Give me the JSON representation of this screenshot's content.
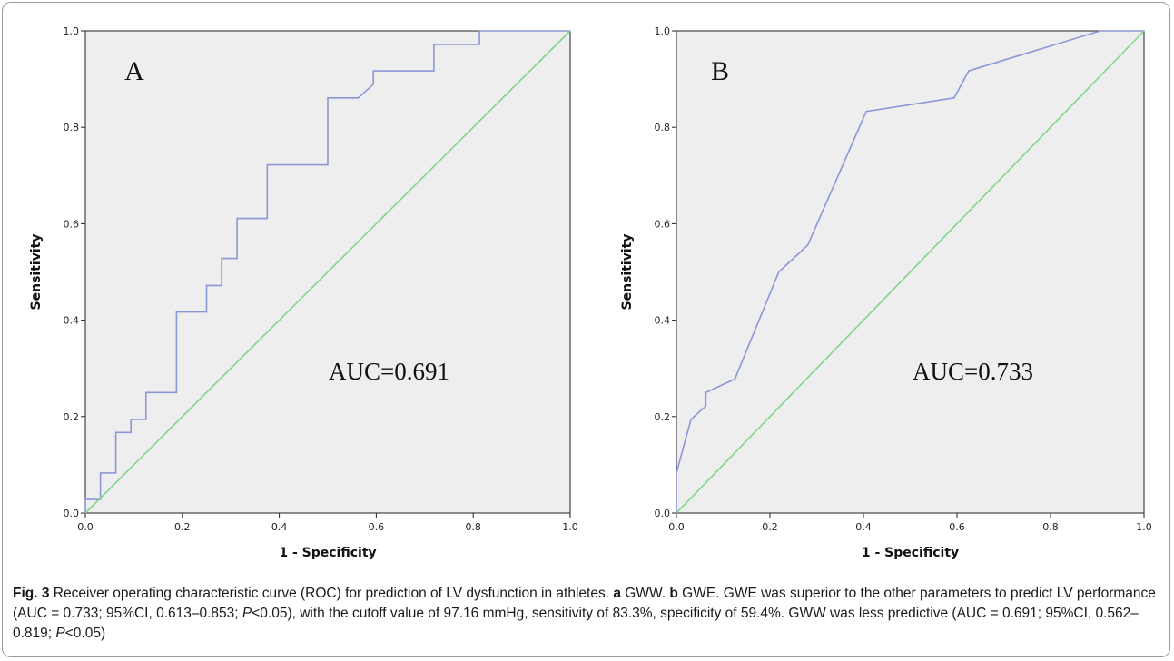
{
  "colors": {
    "roc_line": "#8c97d6",
    "reference_line": "#7fd68a",
    "plot_background": "#eeeeee"
  },
  "caption": {
    "fig_label": "Fig. 3",
    "text_1": " Receiver operating characteristic curve (ROC) for prediction of LV dysfunction in athletes. ",
    "a_label": "a",
    "text_2": " GWW. ",
    "b_label": "b",
    "text_3": " GWE. GWE was superior to the other parameters to predict LV performance (AUC = 0.733; 95%CI, 0.613–0.853; ",
    "p_label_1": "P",
    "text_4": "<0.05), with the cutoff value of 97.16 mmHg, sensitivity of 83.3%, specificity of 59.4%. GWW was less predictive (AUC = 0.691; 95%CI, 0.562–0.819; ",
    "p_label_2": "P",
    "text_5": "<0.05)"
  },
  "chart_data": [
    {
      "type": "line",
      "panel_label": "A",
      "annotation": "AUC=0.691",
      "xlabel": "1 - Specificity",
      "ylabel": "Sensitivity",
      "xlim": [
        0,
        1
      ],
      "ylim": [
        0,
        1
      ],
      "xticks": [
        "0.0",
        "0.2",
        "0.4",
        "0.6",
        "0.8",
        "1.0"
      ],
      "yticks": [
        "0.0",
        "0.2",
        "0.4",
        "0.6",
        "0.8",
        "1.0"
      ],
      "grid": false,
      "series": [
        {
          "role": "roc",
          "x": [
            0,
            0,
            0.031,
            0.031,
            0.063,
            0.063,
            0.094,
            0.094,
            0.125,
            0.125,
            0.188,
            0.188,
            0.25,
            0.25,
            0.281,
            0.281,
            0.313,
            0.313,
            0.375,
            0.375,
            0.5,
            0.5,
            0.563,
            0.594,
            0.594,
            0.719,
            0.719,
            0.813,
            0.813,
            1.0
          ],
          "y": [
            0,
            0.028,
            0.028,
            0.083,
            0.083,
            0.167,
            0.167,
            0.194,
            0.194,
            0.25,
            0.25,
            0.417,
            0.417,
            0.472,
            0.472,
            0.528,
            0.528,
            0.611,
            0.611,
            0.722,
            0.722,
            0.861,
            0.861,
            0.889,
            0.917,
            0.917,
            0.972,
            0.972,
            1.0,
            1.0
          ]
        },
        {
          "role": "reference",
          "x": [
            0,
            1
          ],
          "y": [
            0,
            1
          ]
        }
      ]
    },
    {
      "type": "line",
      "panel_label": "B",
      "annotation": "AUC=0.733",
      "xlabel": "1 - Specificity",
      "ylabel": "Sensitivity",
      "xlim": [
        0,
        1
      ],
      "ylim": [
        0,
        1
      ],
      "xticks": [
        "0.0",
        "0.2",
        "0.4",
        "0.6",
        "0.8",
        "1.0"
      ],
      "yticks": [
        "0.0",
        "0.2",
        "0.4",
        "0.6",
        "0.8",
        "1.0"
      ],
      "grid": false,
      "series": [
        {
          "role": "roc",
          "x": [
            0,
            0,
            0.031,
            0.031,
            0.063,
            0.063,
            0.125,
            0.219,
            0.281,
            0.406,
            0.594,
            0.625,
            0.906,
            1.0
          ],
          "y": [
            0,
            0.083,
            0.194,
            0.194,
            0.222,
            0.25,
            0.278,
            0.5,
            0.556,
            0.833,
            0.861,
            0.917,
            1.0,
            1.0
          ]
        },
        {
          "role": "reference",
          "x": [
            0,
            1
          ],
          "y": [
            0,
            1
          ]
        }
      ]
    }
  ]
}
